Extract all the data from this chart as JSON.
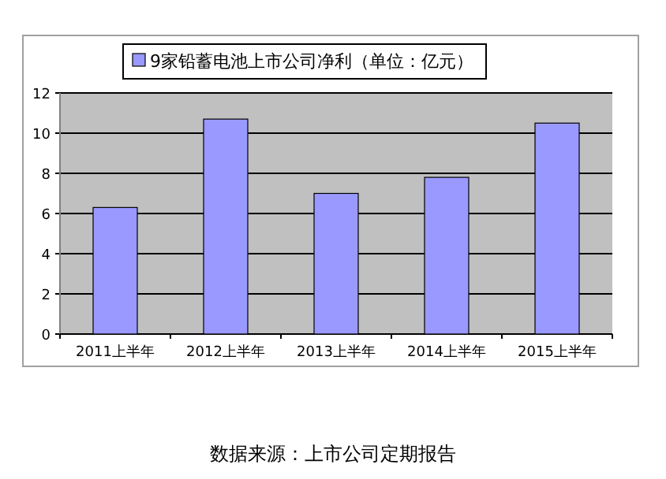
{
  "chart_data": {
    "type": "bar",
    "categories": [
      "2011上半年",
      "2012上半年",
      "2013上半年",
      "2014上半年",
      "2015上半年"
    ],
    "series": [
      {
        "name": "9家铅蓄电池上市公司净利（单位：亿元）",
        "color": "#9999ff",
        "values": [
          6.3,
          10.7,
          7.0,
          7.8,
          10.5
        ]
      }
    ],
    "ylim": [
      0,
      12
    ],
    "yticks": [
      0,
      2,
      4,
      6,
      8,
      10,
      12
    ],
    "grid": "y",
    "legend": "top",
    "annotations": [
      "数据来源：上市公司定期报告"
    ]
  }
}
